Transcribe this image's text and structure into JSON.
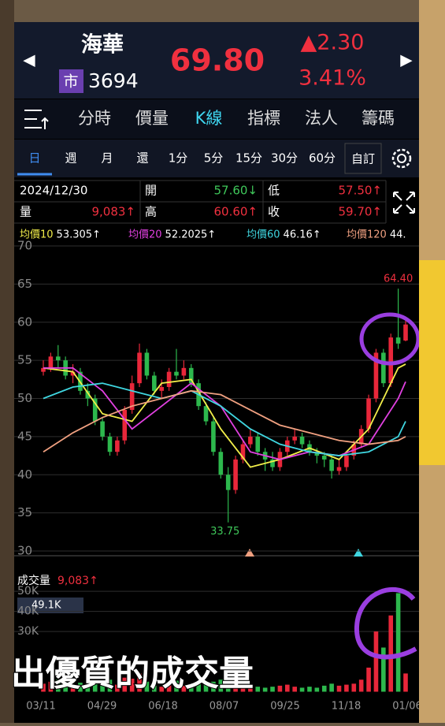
{
  "header": {
    "name": "海華",
    "market": "市",
    "code": "3694",
    "price": "69.80",
    "change": "▲2.30",
    "change_pct": "3.41%"
  },
  "tabs": [
    "分時",
    "價量",
    "K線",
    "指標",
    "法人",
    "籌碼"
  ],
  "active_tab": 2,
  "periods": [
    "日",
    "週",
    "月",
    "還",
    "1分",
    "5分",
    "15分",
    "30分",
    "60分"
  ],
  "active_period": 0,
  "custom": "自訂",
  "info": {
    "date": "2024/12/30",
    "cells": [
      {
        "label": "開",
        "value": "57.60↓",
        "dir": "down"
      },
      {
        "label": "低",
        "value": "57.50↑",
        "dir": "up"
      },
      {
        "label": "量",
        "value": "9,083↑",
        "dir": "up"
      },
      {
        "label": "高",
        "value": "60.60↑",
        "dir": "up"
      },
      {
        "label": "收",
        "value": "59.70↑",
        "dir": "up"
      }
    ]
  },
  "chart_data": {
    "type": "candlestick",
    "ylim": [
      30,
      70
    ],
    "yticks": [
      30,
      35,
      40,
      45,
      50,
      55,
      60,
      65,
      70
    ],
    "grid": true,
    "up_color": "#e8273a",
    "down_color": "#2db84d",
    "candles": [
      [
        53.5,
        55,
        53,
        54
      ],
      [
        54,
        56,
        53.5,
        55.5
      ],
      [
        55.5,
        57,
        54,
        55
      ],
      [
        55,
        55.5,
        52.5,
        53
      ],
      [
        53,
        54.5,
        52,
        53.5
      ],
      [
        53.5,
        54,
        50.5,
        51
      ],
      [
        51,
        52,
        49,
        50
      ],
      [
        50,
        50.5,
        46.5,
        47
      ],
      [
        47,
        47.5,
        44.5,
        45
      ],
      [
        45,
        45.5,
        42.5,
        43
      ],
      [
        43,
        45,
        42.5,
        44.5
      ],
      [
        44.5,
        49,
        44,
        48.5
      ],
      [
        48.5,
        53,
        48,
        52
      ],
      [
        52,
        57.2,
        51.5,
        56
      ],
      [
        56,
        56.5,
        52.5,
        53
      ],
      [
        53,
        53.5,
        50.5,
        51
      ],
      [
        51,
        52.5,
        50,
        51.5
      ],
      [
        51.5,
        54,
        51,
        53.5
      ],
      [
        53.5,
        56.5,
        52.5,
        53
      ],
      [
        53,
        55,
        52.5,
        54
      ],
      [
        54,
        54.5,
        51.5,
        52
      ],
      [
        52,
        52.5,
        48.5,
        49
      ],
      [
        49,
        49.5,
        46.5,
        47
      ],
      [
        47,
        47.5,
        42.5,
        43
      ],
      [
        43,
        43.5,
        39.5,
        40
      ],
      [
        40,
        41,
        33.75,
        38
      ],
      [
        38,
        42.5,
        37.5,
        42
      ],
      [
        42,
        44.5,
        41.5,
        44
      ],
      [
        44,
        46,
        43.5,
        45
      ],
      [
        45,
        45.5,
        42.5,
        43
      ],
      [
        43,
        43.5,
        40.5,
        42
      ],
      [
        42,
        43,
        40.5,
        41
      ],
      [
        41,
        43.5,
        40.5,
        43
      ],
      [
        43,
        45,
        42.5,
        44.5
      ],
      [
        44.5,
        46,
        44,
        45
      ],
      [
        45,
        45.5,
        43.5,
        44
      ],
      [
        44,
        44.5,
        42.5,
        43
      ],
      [
        43,
        43.5,
        41.5,
        42.5
      ],
      [
        42.5,
        43,
        41,
        42
      ],
      [
        42,
        42.5,
        39.5,
        40.5
      ],
      [
        40.5,
        42,
        40,
        41
      ],
      [
        41,
        43,
        40.5,
        42.5
      ],
      [
        42.5,
        44.5,
        42,
        44
      ],
      [
        44,
        46.5,
        43.5,
        46
      ],
      [
        46,
        50.5,
        45.5,
        50
      ],
      [
        50,
        56.5,
        49.5,
        56
      ],
      [
        56,
        56.5,
        51.5,
        52
      ],
      [
        52,
        58.5,
        51.5,
        58
      ],
      [
        58,
        64.4,
        56.5,
        57.2
      ],
      [
        57.6,
        60.6,
        57.5,
        59.7
      ]
    ],
    "ma_x": [
      0,
      4,
      8,
      12,
      16,
      20,
      24,
      28,
      32,
      36,
      40,
      44,
      48,
      49
    ],
    "series": [
      {
        "name": "均價10",
        "value_label": "53.305↑",
        "color": "#f2ee4a",
        "values": [
          54,
          53.5,
          48,
          47,
          52,
          52.5,
          46,
          41,
          42,
          43.5,
          42,
          46,
          54,
          54.5
        ]
      },
      {
        "name": "均價20",
        "value_label": "52.2025↑",
        "color": "#e040e0",
        "values": [
          54,
          54,
          51,
          46,
          49,
          52,
          49,
          43,
          42,
          43,
          42.5,
          44,
          50,
          52.2
        ]
      },
      {
        "name": "均價60",
        "value_label": "46.16↑",
        "color": "#3fd6e0",
        "values": [
          50,
          51.5,
          52,
          51,
          50,
          51,
          49,
          46,
          44,
          43,
          42.5,
          43,
          45,
          47
        ]
      },
      {
        "name": "均價120",
        "value_label": "44.",
        "color": "#f0a080",
        "values": [
          43,
          45.5,
          47.5,
          49,
          50,
          51,
          50.5,
          48.5,
          46.5,
          45.5,
          44.5,
          44,
          44.5,
          45
        ]
      }
    ],
    "high_label": "64.40",
    "low_label": "33.75",
    "x_labels": [
      "03/11",
      "04/29",
      "06/18",
      "08/07",
      "09/25",
      "11/18",
      "01/06"
    ],
    "volume": {
      "title": "成交量",
      "value": "9,083↑",
      "marker": "49.1K",
      "ylim": [
        0,
        54000
      ],
      "yticks": [
        {
          "value": 30000,
          "label": "30K"
        },
        {
          "value": 40000,
          "label": "40K"
        },
        {
          "value": 50000,
          "label": "50K"
        }
      ],
      "values": [
        4000,
        5000,
        6000,
        3500,
        3000,
        4500,
        3000,
        5000,
        4000,
        6000,
        3500,
        7000,
        6500,
        9000,
        5000,
        3000,
        2500,
        3500,
        5500,
        3000,
        2500,
        4000,
        3500,
        5000,
        6000,
        9500,
        7000,
        4500,
        3000,
        2500,
        2000,
        2500,
        3000,
        3500,
        2500,
        2000,
        2500,
        2000,
        3000,
        4000,
        3000,
        3500,
        4000,
        6000,
        12000,
        30000,
        22000,
        38000,
        49100,
        9083
      ]
    }
  },
  "subtitle": "出優質的成交量"
}
